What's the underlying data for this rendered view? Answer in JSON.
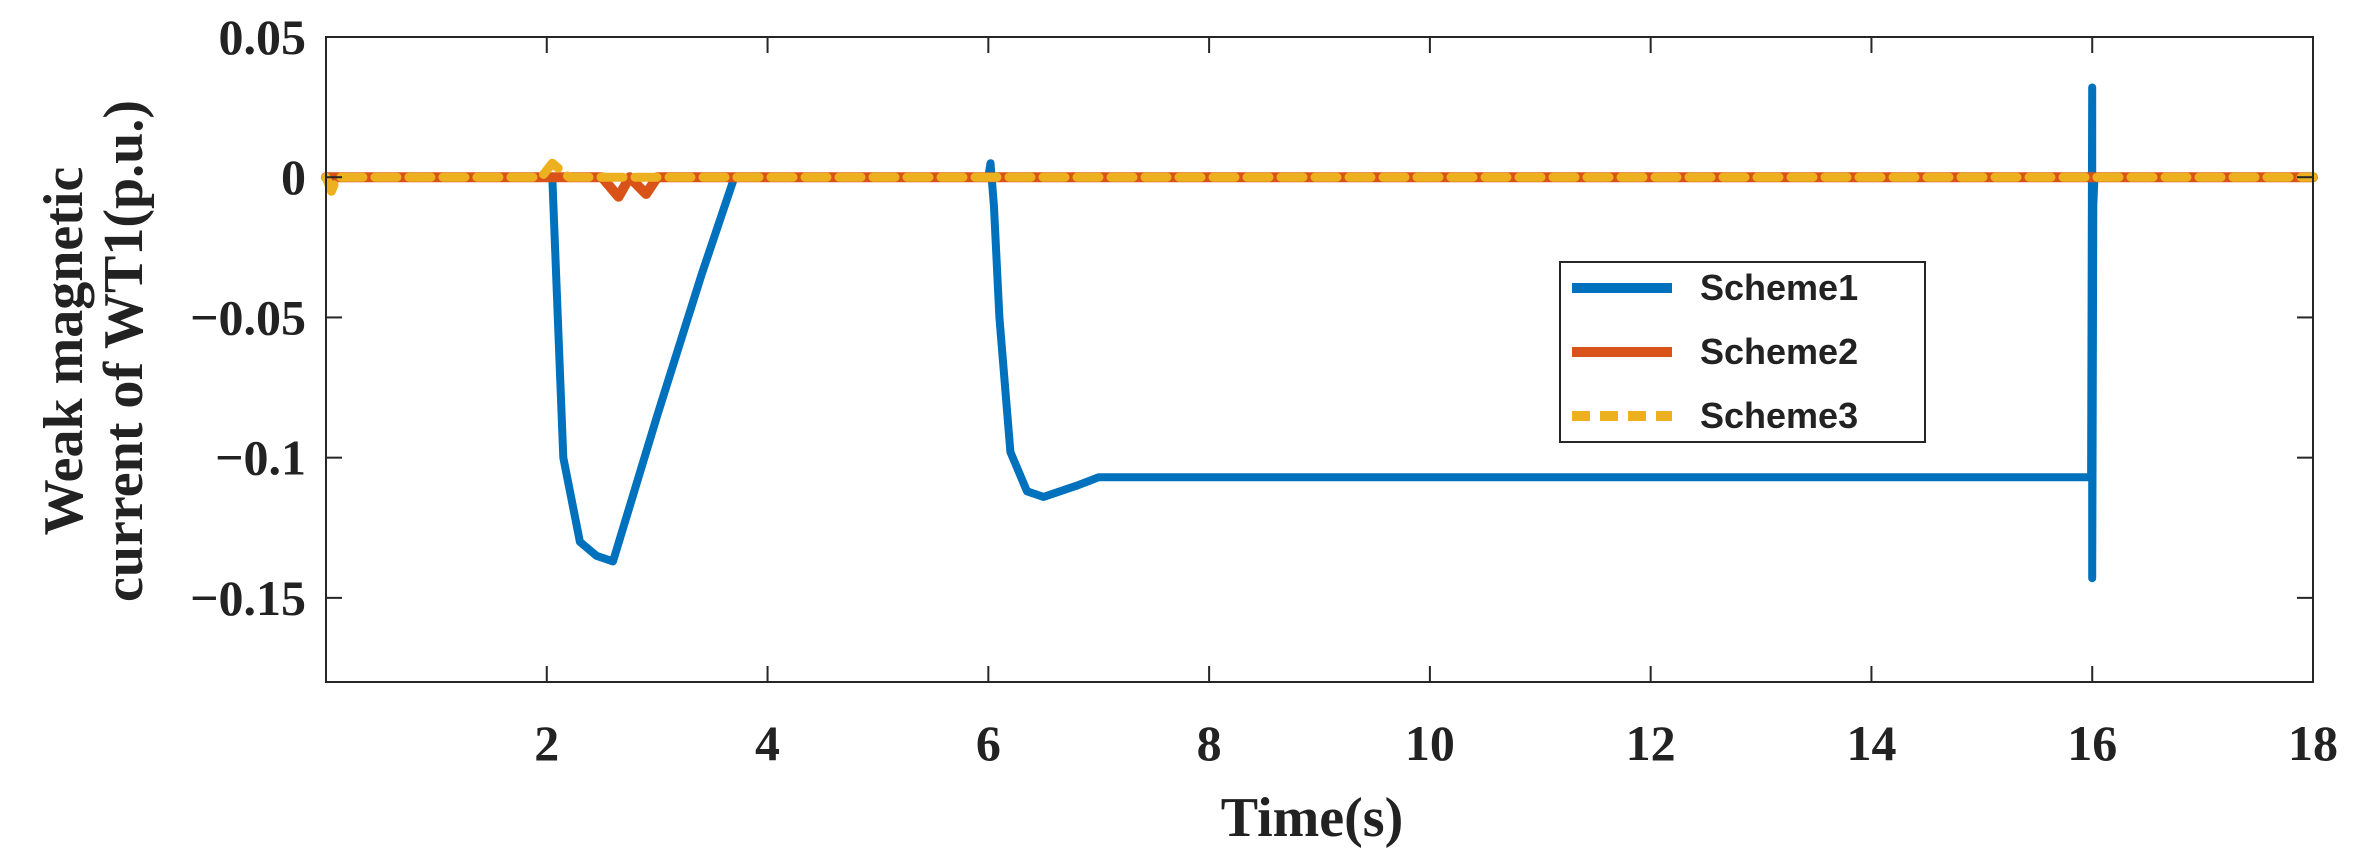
{
  "chart_data": {
    "type": "line",
    "title": "",
    "xlabel": "Time(s)",
    "ylabel_lines": [
      "Weak magnetic",
      "current of WT1(p.u.)"
    ],
    "xlim": [
      0,
      18
    ],
    "ylim": [
      -0.18,
      0.05
    ],
    "xticks": [
      2,
      4,
      6,
      8,
      10,
      12,
      14,
      16,
      18
    ],
    "xtick_labels": [
      "2",
      "4",
      "6",
      "8",
      "10",
      "12",
      "14",
      "16",
      "18"
    ],
    "yticks": [
      0.05,
      0,
      -0.05,
      -0.1,
      -0.15
    ],
    "ytick_labels": [
      "0.05",
      "0",
      "-0.05",
      "-0.1",
      "-0.15"
    ],
    "legend_position": "center-right",
    "series": [
      {
        "name": "Scheme1",
        "color": "#0072BD",
        "style": "solid",
        "x": [
          0,
          1,
          2.0,
          2.05,
          2.15,
          2.3,
          2.45,
          2.6,
          3.0,
          3.4,
          3.7,
          4,
          5,
          6.0,
          6.02,
          6.05,
          6.1,
          6.2,
          6.35,
          6.5,
          6.8,
          7.0,
          8,
          10,
          12,
          14,
          15.99,
          16.0,
          16.0,
          16.01,
          16.02,
          17,
          18
        ],
        "y": [
          0,
          0,
          0,
          0,
          -0.1,
          -0.13,
          -0.135,
          -0.137,
          -0.085,
          -0.035,
          0,
          0,
          0,
          0,
          0.005,
          -0.01,
          -0.05,
          -0.098,
          -0.112,
          -0.114,
          -0.11,
          -0.107,
          -0.107,
          -0.107,
          -0.107,
          -0.107,
          -0.107,
          0.032,
          -0.143,
          -0.01,
          0,
          0,
          0
        ]
      },
      {
        "name": "Scheme2",
        "color": "#D95319",
        "style": "solid",
        "x": [
          0,
          2.5,
          2.65,
          2.75,
          2.9,
          3.0,
          18
        ],
        "y": [
          0,
          0,
          -0.007,
          0,
          -0.006,
          0,
          0
        ]
      },
      {
        "name": "Scheme3",
        "color": "#EDB120",
        "style": "dashed",
        "x": [
          0,
          0.05,
          0.1,
          1.95,
          2.05,
          2.2,
          18
        ],
        "y": [
          0,
          -0.005,
          0,
          0,
          0.005,
          0,
          0
        ]
      }
    ]
  }
}
